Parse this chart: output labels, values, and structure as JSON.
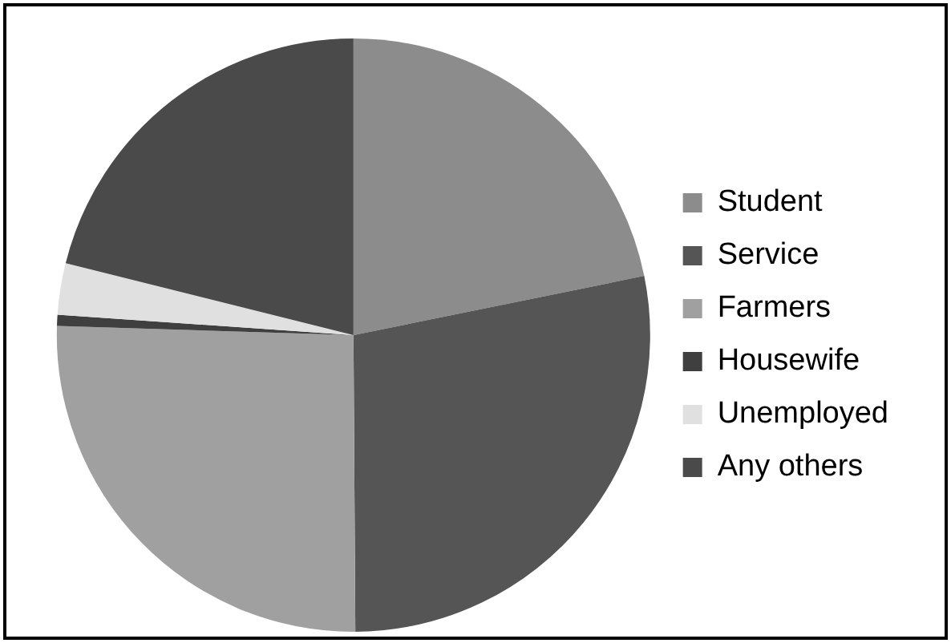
{
  "chart_data": {
    "type": "pie",
    "categories": [
      "Student",
      "Service",
      "Farmers",
      "Housewife",
      "Unemployed",
      "Any others"
    ],
    "values": [
      21.8,
      28.1,
      25.6,
      0.6,
      2.8,
      21.1
    ],
    "colors": [
      "#8c8c8c",
      "#555555",
      "#a0a0a0",
      "#3f3f3f",
      "#e0e0e0",
      "#4a4a4a"
    ],
    "legend": "right"
  }
}
